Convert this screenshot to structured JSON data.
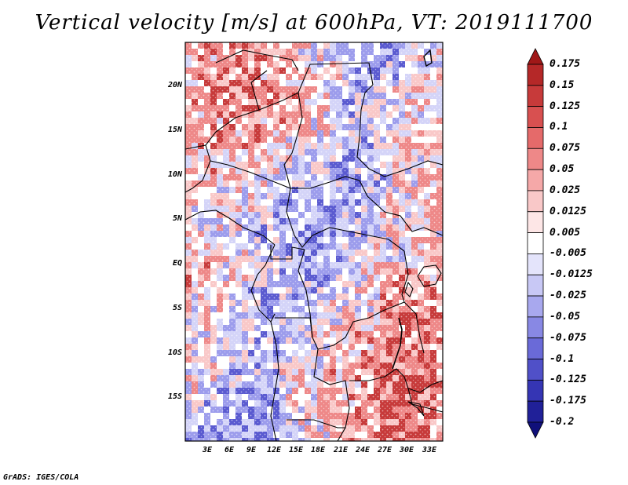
{
  "title": "Vertical velocity [m/s] at 600hPa, VT: 2019111700",
  "credit": "GrADS: IGES/COLA",
  "latitude_labels": [
    "20N",
    "15N",
    "10N",
    "5N",
    "EQ",
    "5S",
    "10S",
    "15S"
  ],
  "longitude_labels": [
    "3E",
    "6E",
    "9E",
    "12E",
    "15E",
    "18E",
    "21E",
    "24E",
    "27E",
    "30E",
    "33E"
  ],
  "colorbar": {
    "labels": [
      "0.175",
      "0.15",
      "0.125",
      "0.1",
      "0.075",
      "0.05",
      "0.025",
      "0.0125",
      "0.005",
      "-0.005",
      "-0.0125",
      "-0.025",
      "-0.05",
      "-0.075",
      "-0.1",
      "-0.125",
      "-0.175",
      "-0.2"
    ],
    "colors": [
      "#a01818",
      "#b52828",
      "#c73a3a",
      "#d85050",
      "#e56a6a",
      "#ee8888",
      "#f5a8a8",
      "#f9c8c8",
      "#fde6e6",
      "#ffffff",
      "#e4e4fb",
      "#c8c8f5",
      "#a8a8ee",
      "#8888e4",
      "#6a6ad8",
      "#5050c8",
      "#3535b4",
      "#202098",
      "#10107a"
    ]
  },
  "map_colors": {
    "strong_up": "#c73a3a",
    "up": "#ee8888",
    "weak_up": "#f9c8c8",
    "neutral": "#ffffff",
    "weak_down": "#d4d4f8",
    "down": "#9c9cec",
    "strong_down": "#5a5ad0"
  }
}
